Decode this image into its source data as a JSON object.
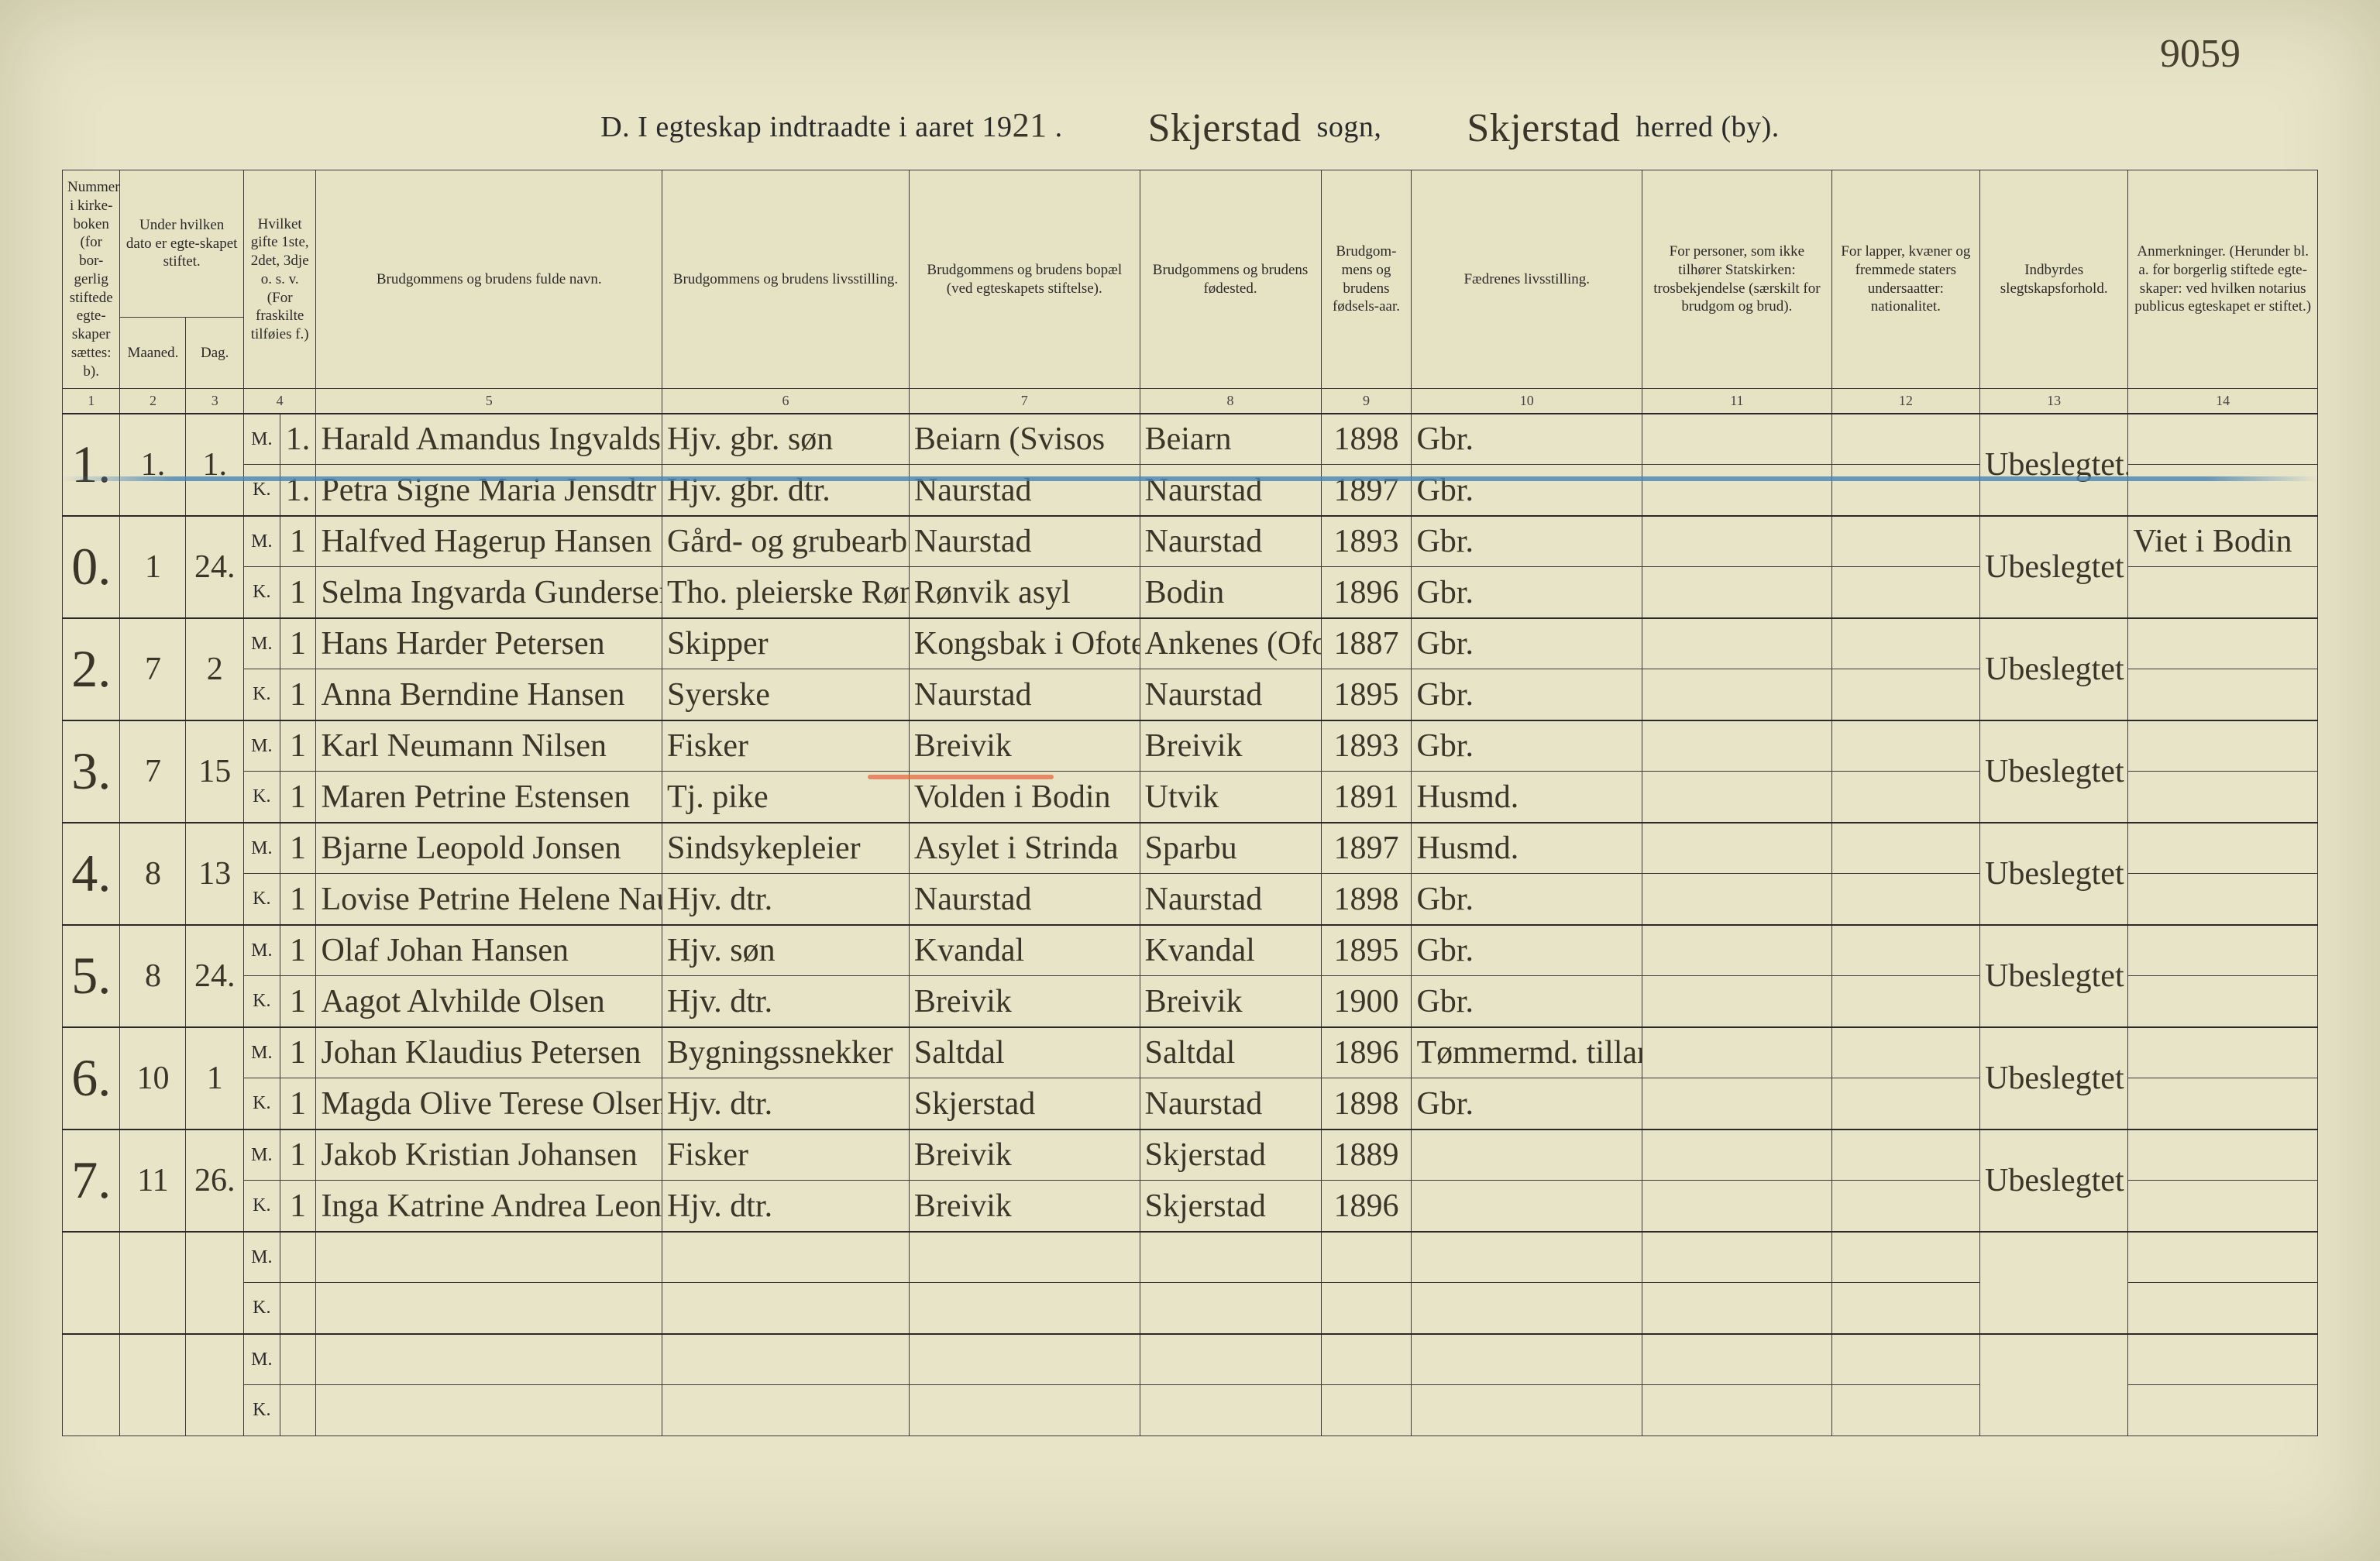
{
  "page_number": "9059",
  "title": {
    "prefix": "D.  I egteskap indtraadte i aaret 19",
    "year_suffix": "21",
    "dot": " .",
    "sogn_hand": "Skjerstad",
    "sogn_label": " sogn,",
    "herred_hand": "Skjerstad",
    "herred_label": " herred (by)."
  },
  "headers": {
    "c1": "Nummer i kirke-boken (for bor-gerlig stiftede egte-skaper sættes: b).",
    "c2_top": "Under hvilken dato er egte-skapet stiftet.",
    "c2a": "Maaned.",
    "c2b": "Dag.",
    "c4": "Hvilket gifte 1ste, 2det, 3dje o. s. v. (For fraskilte tilføies f.)",
    "c5": "Brudgommens og brudens fulde navn.",
    "c6": "Brudgommens og brudens livsstilling.",
    "c7": "Brudgommens og brudens bopæl (ved egteskapets stiftelse).",
    "c8": "Brudgommens og brudens fødested.",
    "c9": "Brudgom-mens og brudens fødsels-aar.",
    "c10": "Fædrenes livsstilling.",
    "c11": "For personer, som ikke tilhører Statskirken: trosbekjendelse (særskilt for brudgom og brud).",
    "c12": "For lapper, kvæner og fremmede staters undersaatter: nationalitet.",
    "c13": "Indbyrdes slegtskapsforhold.",
    "c14": "Anmerkninger. (Herunder bl. a. for borgerlig stiftede egte-skaper: ved hvilken notarius publicus egteskapet er stiftet.)"
  },
  "colnums": [
    "1",
    "2",
    "3",
    "4",
    "5",
    "6",
    "7",
    "8",
    "9",
    "10",
    "11",
    "12",
    "13",
    "14"
  ],
  "mk": {
    "m": "M.",
    "k": "K."
  },
  "rows": [
    {
      "num": "1.",
      "month": "1.",
      "day": "1.",
      "groom": {
        "gifte": "1.",
        "name": "Harald Amandus Ingvaldsen",
        "stilling": "Hjv. gbr. søn",
        "bopel": "Beiarn (Svisos",
        "fodested": "Beiarn",
        "aar": "1898",
        "faedre": "Gbr.",
        "c11": "",
        "c12": "",
        "c13": "",
        "c14": ""
      },
      "bride": {
        "gifte": "1.",
        "name": "Petra Signe Maria Jensdtr",
        "stilling": "Hjv. gbr. dtr.",
        "bopel": "Naurstad",
        "fodested": "Naurstad",
        "aar": "1897",
        "faedre": "Gbr.",
        "c11": "",
        "c12": "",
        "c13": "Ubeslegtet.",
        "c14": ""
      }
    },
    {
      "num": "0.",
      "month": "1",
      "day": "24.",
      "groom": {
        "gifte": "1",
        "name": "Halfved Hagerup Hansen",
        "stilling": "Gård- og grubearb.",
        "bopel": "Naurstad",
        "fodested": "Naurstad",
        "aar": "1893",
        "faedre": "Gbr.",
        "c11": "",
        "c12": "",
        "c13": "",
        "c14": "Viet i Bodin"
      },
      "bride": {
        "gifte": "1",
        "name": "Selma Ingvarda Gundersen",
        "stilling": "Tho. pleierske Rønvik",
        "bopel": "Rønvik asyl",
        "fodested": "Bodin",
        "aar": "1896",
        "faedre": "Gbr.",
        "c11": "",
        "c12": "",
        "c13": "Ubeslegtet",
        "c14": ""
      }
    },
    {
      "num": "2.",
      "month": "7",
      "day": "2",
      "groom": {
        "gifte": "1",
        "name": "Hans Harder Petersen",
        "stilling": "Skipper",
        "bopel": "Kongsbak i Ofoten",
        "fodested": "Ankenes (Ofoten)",
        "aar": "1887",
        "faedre": "Gbr.",
        "c11": "",
        "c12": "",
        "c13": "",
        "c14": ""
      },
      "bride": {
        "gifte": "1",
        "name": "Anna Berndine Hansen",
        "stilling": "Syerske",
        "bopel": "Naurstad",
        "fodested": "Naurstad",
        "aar": "1895",
        "faedre": "Gbr.",
        "c11": "",
        "c12": "",
        "c13": "Ubeslegtet",
        "c14": ""
      }
    },
    {
      "num": "3.",
      "month": "7",
      "day": "15",
      "groom": {
        "gifte": "1",
        "name": "Karl Neumann Nilsen",
        "stilling": "Fisker",
        "bopel": "Breivik",
        "fodested": "Breivik",
        "aar": "1893",
        "faedre": "Gbr.",
        "c11": "",
        "c12": "",
        "c13": "",
        "c14": ""
      },
      "bride": {
        "gifte": "1",
        "name": "Maren Petrine Estensen",
        "stilling": "Tj. pike",
        "bopel": "Volden i Bodin",
        "fodested": "Utvik",
        "aar": "1891",
        "faedre": "Husmd.",
        "c11": "",
        "c12": "",
        "c13": "Ubeslegtet",
        "c14": ""
      }
    },
    {
      "num": "4.",
      "month": "8",
      "day": "13",
      "groom": {
        "gifte": "1",
        "name": "Bjarne Leopold Jonsen",
        "stilling": "Sindsykepleier",
        "bopel": "Asylet i Strinda",
        "fodested": "Sparbu",
        "aar": "1897",
        "faedre": "Husmd.",
        "c11": "",
        "c12": "",
        "c13": "",
        "c14": ""
      },
      "bride": {
        "gifte": "1",
        "name": "Lovise Petrine Helene Naurstad",
        "stilling": "Hjv. dtr.",
        "bopel": "Naurstad",
        "fodested": "Naurstad",
        "aar": "1898",
        "faedre": "Gbr.",
        "c11": "",
        "c12": "",
        "c13": "Ubeslegtet",
        "c14": ""
      }
    },
    {
      "num": "5.",
      "month": "8",
      "day": "24.",
      "groom": {
        "gifte": "1",
        "name": "Olaf Johan Hansen",
        "stilling": "Hjv. søn",
        "bopel": "Kvandal",
        "fodested": "Kvandal",
        "aar": "1895",
        "faedre": "Gbr.",
        "c11": "",
        "c12": "",
        "c13": "",
        "c14": ""
      },
      "bride": {
        "gifte": "1",
        "name": "Aagot Alvhilde Olsen",
        "stilling": "Hjv. dtr.",
        "bopel": "Breivik",
        "fodested": "Breivik",
        "aar": "1900",
        "faedre": "Gbr.",
        "c11": "",
        "c12": "",
        "c13": "Ubeslegtet",
        "c14": ""
      }
    },
    {
      "num": "6.",
      "month": "10",
      "day": "1",
      "groom": {
        "gifte": "1",
        "name": "Johan Klaudius Petersen",
        "stilling": "Bygningssnekker",
        "bopel": "Saltdal",
        "fodested": "Saltdal",
        "aar": "1896",
        "faedre": "Tømmermd. tilland",
        "c11": "",
        "c12": "",
        "c13": "",
        "c14": ""
      },
      "bride": {
        "gifte": "1",
        "name": "Magda Olive Terese Olsen",
        "stilling": "Hjv. dtr.",
        "bopel": "Skjerstad",
        "fodested": "Naurstad",
        "aar": "1898",
        "faedre": "Gbr.",
        "c11": "",
        "c12": "",
        "c13": "Ubeslegtet",
        "c14": ""
      }
    },
    {
      "num": "7.",
      "month": "11",
      "day": "26.",
      "groom": {
        "gifte": "1",
        "name": "Jakob Kristian Johansen",
        "stilling": "Fisker",
        "bopel": "Breivik",
        "fodested": "Skjerstad",
        "aar": "1889",
        "faedre": "",
        "c11": "",
        "c12": "",
        "c13": "",
        "c14": ""
      },
      "bride": {
        "gifte": "1",
        "name": "Inga Katrine Andrea Leonhardsen",
        "stilling": "Hjv. dtr.",
        "bopel": "Breivik",
        "fodested": "Skjerstad",
        "aar": "1896",
        "faedre": "",
        "c11": "",
        "c12": "",
        "c13": "Ubeslegtet",
        "c14": ""
      }
    }
  ],
  "empty_rows": 2,
  "styling": {
    "page_bg": "#e8e4c8",
    "border_color": "#3a3a3a",
    "ink_color": "#3a3528",
    "print_color": "#2a2a2a",
    "blue_line_color": "#4682b4",
    "red_underline_color": "#e6643c",
    "hand_font": "Brush Script MT",
    "print_font": "Georgia",
    "header_fontsize": 19,
    "body_fontsize": 42,
    "title_fontsize": 38
  }
}
